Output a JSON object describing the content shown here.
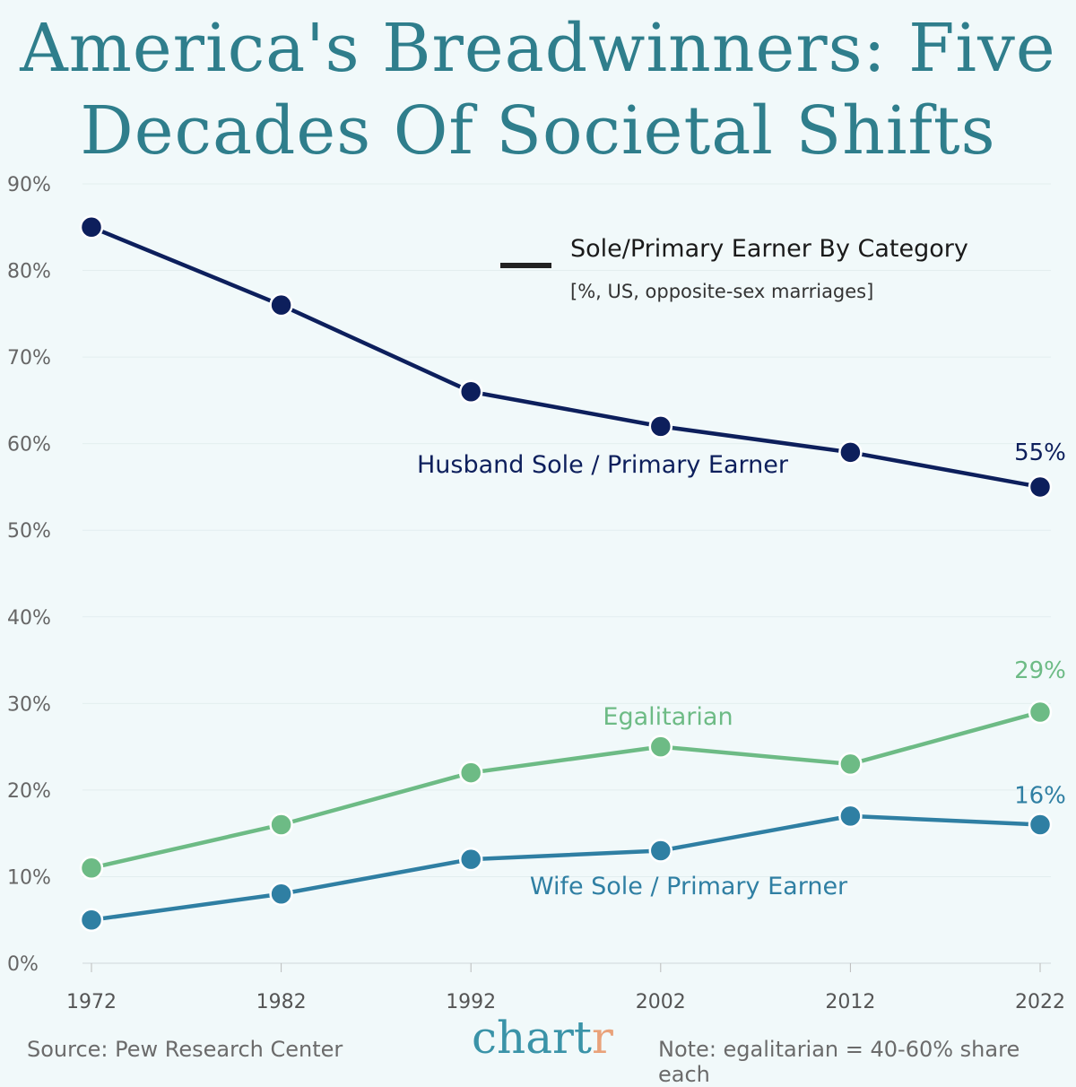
{
  "title": "America's Breadwinners: Five Decades Of Societal Shifts",
  "chart_data": {
    "type": "line",
    "title": "America's Breadwinners: Five Decades Of Societal Shifts",
    "legend_title": "Sole/Primary Earner By Category",
    "legend_subtitle": "[%, US, opposite-sex marriages]",
    "x": [
      1972,
      1982,
      1992,
      2002,
      2012,
      2022
    ],
    "x_tick_labels": [
      "1972",
      "1982",
      "1992",
      "2002",
      "2012",
      "2022"
    ],
    "y_tick_labels": [
      "0%",
      "10%",
      "20%",
      "30%",
      "40%",
      "50%",
      "60%",
      "70%",
      "80%",
      "90%"
    ],
    "ylim": [
      0,
      90
    ],
    "grid": true,
    "series": [
      {
        "name": "Husband Sole / Primary Earner",
        "color": "#0d1f5c",
        "values": [
          85,
          76,
          66,
          62,
          59,
          55
        ],
        "end_label": "55%"
      },
      {
        "name": "Egalitarian",
        "color": "#6dbb85",
        "values": [
          11,
          16,
          22,
          25,
          23,
          29
        ],
        "end_label": "29%"
      },
      {
        "name": "Wife Sole / Primary Earner",
        "color": "#2f7fa3",
        "values": [
          5,
          8,
          12,
          13,
          17,
          16
        ],
        "end_label": "16%"
      }
    ]
  },
  "footer": {
    "source": "Source: Pew Research Center",
    "note": "Note: egalitarian = 40-60% share each",
    "logo_main": "chart",
    "logo_accent": "r"
  }
}
